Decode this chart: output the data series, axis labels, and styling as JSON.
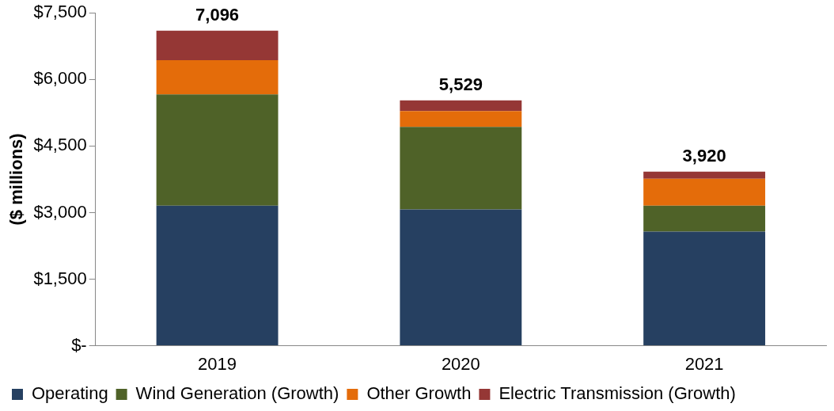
{
  "chart_data": {
    "type": "bar",
    "stacked": true,
    "ylabel": "($ millions)",
    "categories": [
      "2019",
      "2020",
      "2021"
    ],
    "series": [
      {
        "name": "Operating",
        "color": "#264061",
        "values": [
          3155,
          3070,
          2570
        ]
      },
      {
        "name": "Wind Generation (Growth)",
        "color": "#4f6228",
        "values": [
          2505,
          1860,
          585
        ]
      },
      {
        "name": "Other Growth",
        "color": "#e46c0a",
        "values": [
          775,
          355,
          605
        ]
      },
      {
        "name": "Electric Transmission (Growth)",
        "color": "#953735",
        "values": [
          661,
          244,
          160
        ]
      }
    ],
    "totals": [
      "7,096",
      "5,529",
      "3,920"
    ],
    "ylim": [
      0,
      7500
    ],
    "yticks": [
      {
        "value": 0,
        "label": "$-"
      },
      {
        "value": 1500,
        "label": "$1,500"
      },
      {
        "value": 3000,
        "label": "$3,000"
      },
      {
        "value": 4500,
        "label": "$4,500"
      },
      {
        "value": 6000,
        "label": "$6,000"
      },
      {
        "value": 7500,
        "label": "$7,500"
      }
    ],
    "grid": false,
    "legend": "bottom"
  }
}
